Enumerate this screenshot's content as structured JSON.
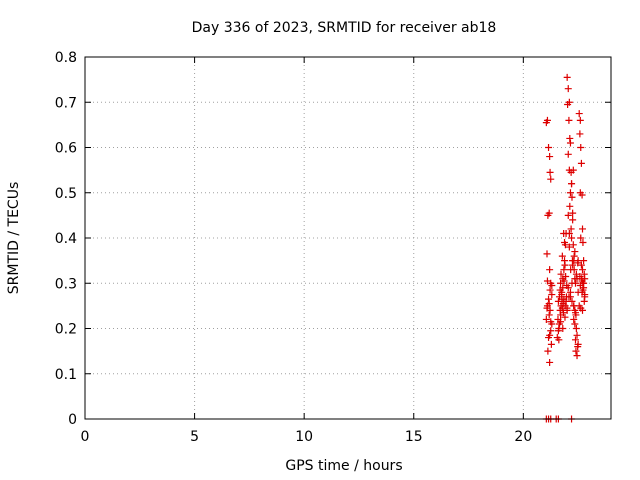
{
  "chart_data": {
    "type": "scatter",
    "title": "Day 336 of 2023, SRMTID for receiver ab18",
    "xlabel": "GPS time / hours",
    "ylabel": "SRMTID / TECUs",
    "xlim": [
      0,
      24
    ],
    "ylim": [
      0,
      0.8
    ],
    "xticks": [
      0,
      5,
      10,
      15,
      20
    ],
    "yticks": [
      0,
      0.1,
      0.2,
      0.3,
      0.4,
      0.5,
      0.6,
      0.7,
      0.8
    ],
    "grid": true,
    "marker": "plus",
    "color": "#dd0000",
    "series": [
      {
        "x": [
          21.05,
          21.1,
          21.15,
          21.2,
          21.22,
          21.25,
          21.18,
          21.12,
          21.08,
          21.2,
          21.25,
          21.3,
          21.15,
          21.1,
          21.22,
          21.18,
          21.05,
          21.3,
          21.25,
          21.2,
          21.15,
          21.28,
          21.12,
          21.2,
          21.22,
          21.1,
          21.3,
          21.18,
          21.25,
          21.08,
          21.55,
          21.6,
          21.62,
          21.65,
          21.58,
          21.7,
          21.68,
          21.72,
          21.6,
          21.65,
          21.75,
          21.8,
          21.7,
          21.62,
          21.78,
          21.82,
          21.85,
          21.75,
          21.68,
          21.8,
          21.72,
          21.85,
          21.9,
          21.88,
          21.78,
          21.92,
          21.95,
          21.83,
          21.9,
          21.98,
          21.86,
          21.93,
          21.76,
          21.97,
          21.88,
          21.84,
          21.91,
          21.99,
          21.7,
          21.8,
          22.0,
          22.05,
          22.1,
          22.02,
          22.08,
          22.12,
          22.15,
          22.05,
          22.1,
          22.18,
          22.2,
          22.15,
          22.22,
          22.25,
          22.1,
          22.2,
          22.28,
          22.3,
          22.25,
          22.32,
          22.05,
          22.15,
          22.22,
          22.3,
          22.35,
          22.38,
          22.4,
          22.3,
          22.35,
          22.42,
          22.45,
          22.38,
          22.48,
          22.4,
          22.45,
          22.5,
          22.35,
          22.42,
          22.48,
          22.5,
          22.55,
          22.6,
          22.58,
          22.62,
          22.65,
          22.6,
          22.68,
          22.7,
          22.62,
          22.72,
          22.75,
          22.65,
          22.7,
          22.78,
          22.8,
          22.72,
          22.75,
          22.68,
          22.8,
          22.78,
          22.55,
          22.62,
          22.7,
          22.75,
          22.6,
          22.68,
          22.72,
          22.8,
          22.58,
          22.66,
          22.05,
          22.12,
          22.2,
          22.28,
          22.35,
          22.1,
          22.18,
          22.25,
          22.32,
          22.15,
          22.22,
          21.95,
          22.0,
          22.08,
          22.16,
          22.24,
          22.3,
          22.38,
          22.45,
          22.5,
          21.05,
          21.15,
          21.25,
          21.5,
          21.6,
          22.2
        ],
        "y": [
          0.655,
          0.66,
          0.6,
          0.58,
          0.545,
          0.53,
          0.455,
          0.45,
          0.365,
          0.33,
          0.3,
          0.295,
          0.265,
          0.25,
          0.24,
          0.23,
          0.22,
          0.21,
          0.195,
          0.185,
          0.18,
          0.165,
          0.15,
          0.125,
          0.285,
          0.305,
          0.275,
          0.255,
          0.215,
          0.245,
          0.18,
          0.195,
          0.2,
          0.21,
          0.22,
          0.23,
          0.24,
          0.25,
          0.26,
          0.27,
          0.28,
          0.29,
          0.3,
          0.175,
          0.245,
          0.255,
          0.265,
          0.275,
          0.285,
          0.31,
          0.32,
          0.33,
          0.34,
          0.35,
          0.36,
          0.385,
          0.41,
          0.235,
          0.225,
          0.295,
          0.305,
          0.315,
          0.265,
          0.27,
          0.39,
          0.41,
          0.25,
          0.245,
          0.215,
          0.2,
          0.755,
          0.73,
          0.7,
          0.695,
          0.66,
          0.62,
          0.61,
          0.585,
          0.55,
          0.545,
          0.52,
          0.5,
          0.49,
          0.455,
          0.41,
          0.4,
          0.385,
          0.35,
          0.34,
          0.33,
          0.29,
          0.27,
          0.26,
          0.25,
          0.24,
          0.235,
          0.23,
          0.22,
          0.21,
          0.2,
          0.185,
          0.175,
          0.16,
          0.15,
          0.14,
          0.165,
          0.31,
          0.32,
          0.345,
          0.35,
          0.675,
          0.66,
          0.63,
          0.6,
          0.565,
          0.5,
          0.495,
          0.42,
          0.4,
          0.39,
          0.35,
          0.34,
          0.33,
          0.32,
          0.31,
          0.3,
          0.29,
          0.28,
          0.27,
          0.26,
          0.25,
          0.245,
          0.24,
          0.3,
          0.295,
          0.305,
          0.285,
          0.275,
          0.315,
          0.31,
          0.45,
          0.47,
          0.52,
          0.55,
          0.37,
          0.38,
          0.42,
          0.44,
          0.36,
          0.28,
          0.3,
          0.26,
          0.24,
          0.27,
          0.33,
          0.35,
          0.25,
          0.3,
          0.31,
          0.28,
          0.0,
          0.0,
          0.0,
          0.0,
          0.0,
          0.0
        ]
      }
    ]
  }
}
